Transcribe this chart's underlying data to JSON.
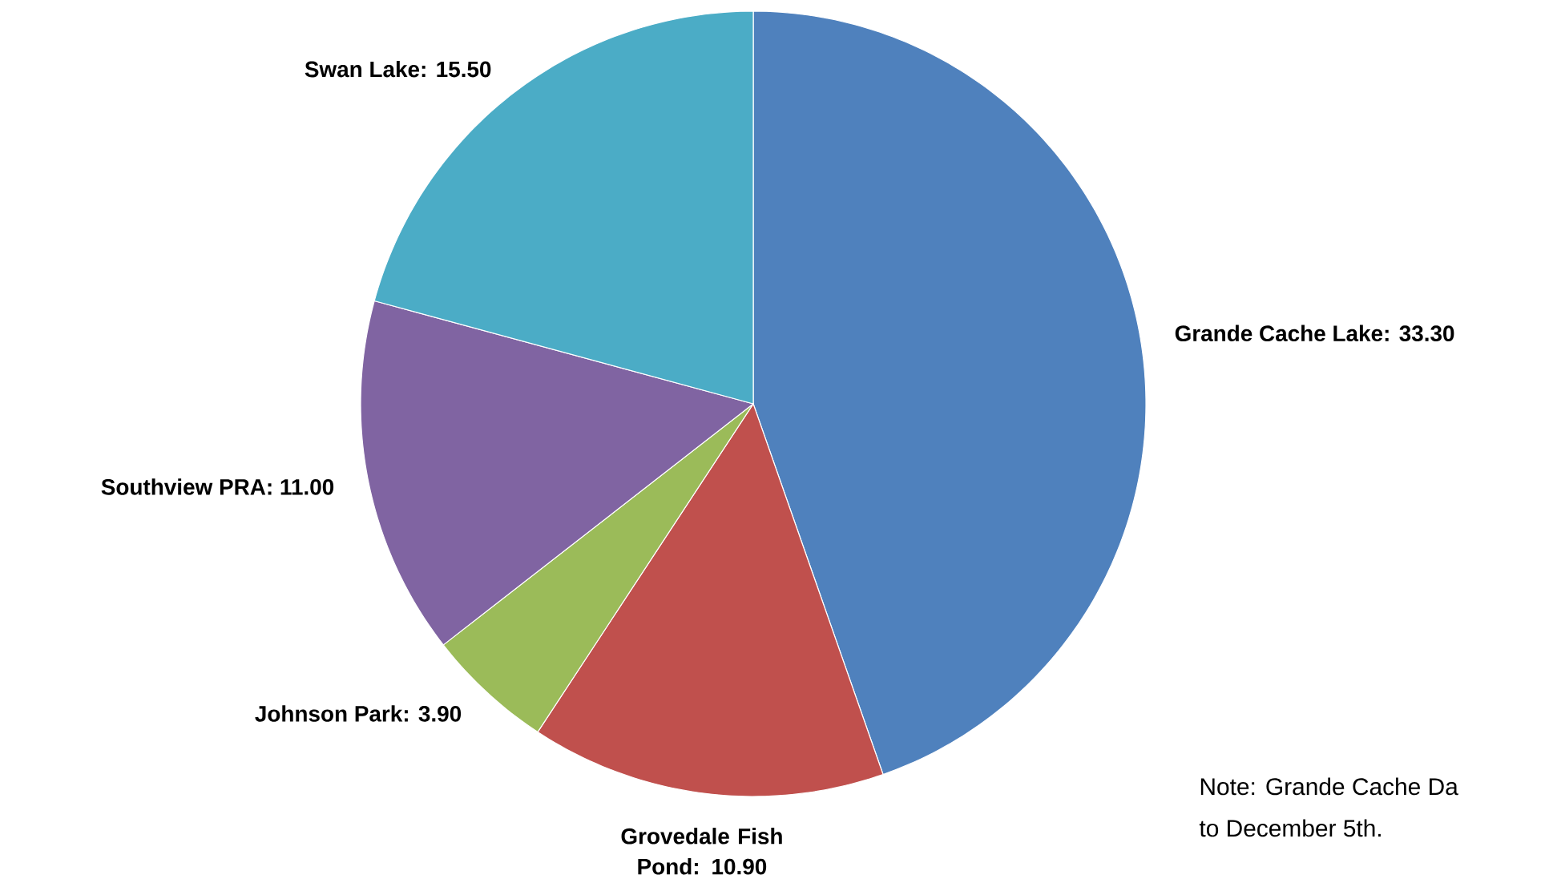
{
  "chart_data": {
    "type": "pie",
    "categories": [
      "Grande Cache Lake",
      "Grovedale Fish Pond",
      "Johnson Park",
      "Southview PRA",
      "Swan Lake"
    ],
    "values": [
      33.3,
      10.9,
      3.9,
      11.0,
      15.5
    ],
    "value_labels": [
      ": 33.30",
      ": 10.90",
      ": 3.90",
      ": 11.00",
      ": 15.50"
    ],
    "colors": [
      "#4f81bd",
      "#c0504d",
      "#9bbb59",
      "#8064a2",
      "#4bacc6"
    ],
    "annotations": [
      "Note: Grande Cache Da",
      "to December 5th."
    ]
  }
}
